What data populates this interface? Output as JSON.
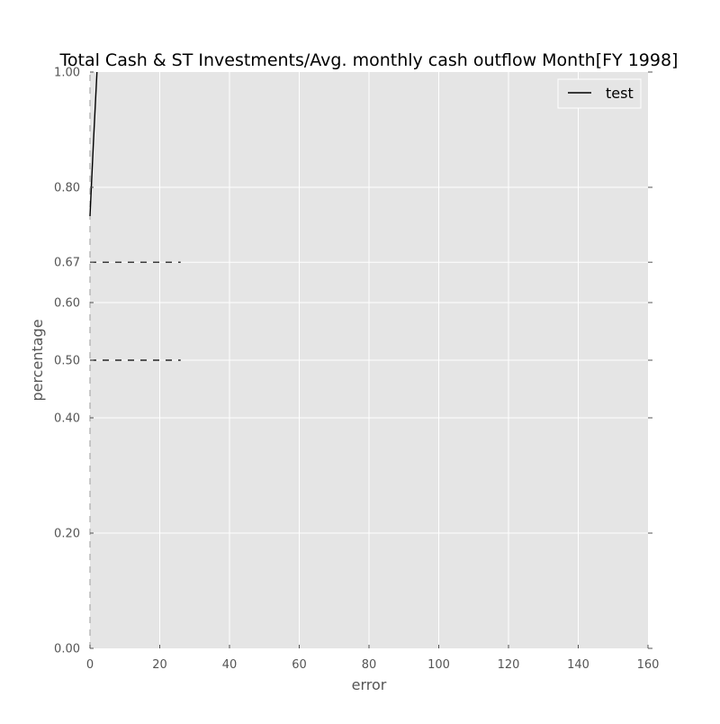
{
  "chart_data": {
    "type": "line",
    "title": "Total Cash & ST Investments/Avg. monthly cash outflow Month[FY 1998]",
    "xlabel": "error",
    "ylabel": "percentage",
    "xlim": [
      0,
      160
    ],
    "ylim": [
      0,
      1
    ],
    "xticks": [
      0,
      20,
      40,
      60,
      80,
      100,
      120,
      140,
      160
    ],
    "xtick_labels": [
      "0",
      "20",
      "40",
      "60",
      "80",
      "100",
      "120",
      "140",
      "160"
    ],
    "yticks": [
      0,
      0.2,
      0.4,
      0.5,
      0.6,
      0.67,
      0.8,
      1.0
    ],
    "ytick_labels": [
      "0.00",
      "0.20",
      "0.40",
      "0.50",
      "0.60",
      "0.67",
      "0.80",
      "1.00"
    ],
    "grid": true,
    "legend_position": "top-right",
    "series": [
      {
        "name": "test",
        "color": "#000000",
        "style": "solid",
        "x": [
          0,
          1,
          2
        ],
        "y": [
          0.75,
          0.88,
          1.0
        ]
      }
    ],
    "reference_lines": [
      {
        "orientation": "horizontal",
        "y": 0.67,
        "x_start": 0,
        "x_end": 26,
        "style": "dashed",
        "color": "#000000"
      },
      {
        "orientation": "horizontal",
        "y": 0.5,
        "x_start": 0,
        "x_end": 26,
        "style": "dashed",
        "color": "#000000"
      },
      {
        "orientation": "vertical",
        "x": 0,
        "y_start": 0,
        "y_end": 1,
        "style": "dashed",
        "color": "#aaaaaa"
      }
    ],
    "colors": {
      "plot_background": "#e5e5e5",
      "grid": "#ffffff",
      "tick_label": "#555555"
    }
  }
}
